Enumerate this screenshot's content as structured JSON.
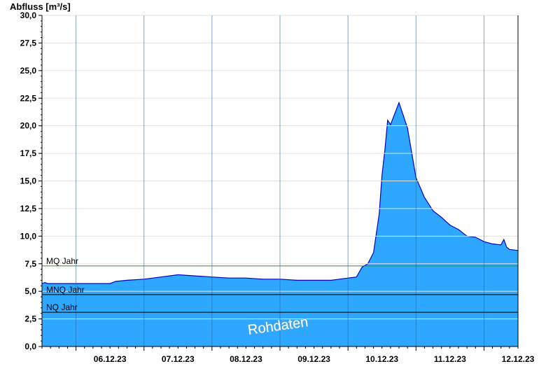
{
  "chart_data": {
    "type": "area",
    "ylabel": "Abfluss [m³/s]",
    "ylim": [
      0,
      30
    ],
    "yticks": [
      "0,0",
      "2,5",
      "5,0",
      "7,5",
      "10,0",
      "12,5",
      "15,0",
      "17,5",
      "20,0",
      "22,5",
      "25,0",
      "27,5",
      "30,0"
    ],
    "xlim": [
      "05.12.23 12:00",
      "12.12.23 12:00"
    ],
    "xticks": [
      "06.12.23",
      "07.12.23",
      "08.12.23",
      "09.12.23",
      "10.12.23",
      "11.12.23",
      "12.12.23"
    ],
    "grid": true,
    "watermark": "Rohdaten",
    "reference_lines": [
      {
        "label": "MQ Jahr",
        "value": 7.3,
        "color": "#2e8b2e"
      },
      {
        "label": "MNQ Jahr",
        "value": 4.7,
        "color": "#000000"
      },
      {
        "label": "NQ Jahr",
        "value": 3.1,
        "color": "#000000"
      }
    ],
    "series": [
      {
        "fill": "#2ea8ff",
        "line": "#0000cc",
        "x": [
          "05.12.23 12:00",
          "05.12.23 13:00",
          "05.12.23 14:00",
          "05.12.23 18:00",
          "06.12.23 00:00",
          "06.12.23 06:00",
          "06.12.23 12:00",
          "06.12.23 14:00",
          "06.12.23 18:00",
          "07.12.23 00:00",
          "07.12.23 06:00",
          "07.12.23 12:00",
          "07.12.23 18:00",
          "08.12.23 00:00",
          "08.12.23 06:00",
          "08.12.23 12:00",
          "08.12.23 18:00",
          "09.12.23 00:00",
          "09.12.23 06:00",
          "09.12.23 12:00",
          "09.12.23 18:00",
          "09.12.23 21:00",
          "10.12.23 00:00",
          "10.12.23 03:00",
          "10.12.23 05:00",
          "10.12.23 07:00",
          "10.12.23 09:00",
          "10.12.23 11:00",
          "10.12.23 12:00",
          "10.12.23 13:00",
          "10.12.23 14:00",
          "10.12.23 15:00",
          "10.12.23 18:00",
          "10.12.23 21:00",
          "11.12.23 00:00",
          "11.12.23 03:00",
          "11.12.23 06:00",
          "11.12.23 09:00",
          "11.12.23 12:00",
          "11.12.23 15:00",
          "11.12.23 18:00",
          "11.12.23 21:00",
          "12.12.23 00:00",
          "12.12.23 03:00",
          "12.12.23 06:00",
          "12.12.23 07:00",
          "12.12.23 08:00",
          "12.12.23 09:00",
          "12.12.23 12:00"
        ],
        "values": [
          5.7,
          5.8,
          5.7,
          5.7,
          5.7,
          5.7,
          5.7,
          5.9,
          6.0,
          6.1,
          6.3,
          6.5,
          6.4,
          6.3,
          6.2,
          6.2,
          6.1,
          6.1,
          6.0,
          6.0,
          6.0,
          6.1,
          6.2,
          6.3,
          7.2,
          7.5,
          8.5,
          12.0,
          15.5,
          17.8,
          20.5,
          20.1,
          22.1,
          19.8,
          15.3,
          13.5,
          12.3,
          11.7,
          11.0,
          10.6,
          10.0,
          9.9,
          9.5,
          9.3,
          9.2,
          9.7,
          9.0,
          8.8,
          8.7
        ]
      }
    ]
  }
}
